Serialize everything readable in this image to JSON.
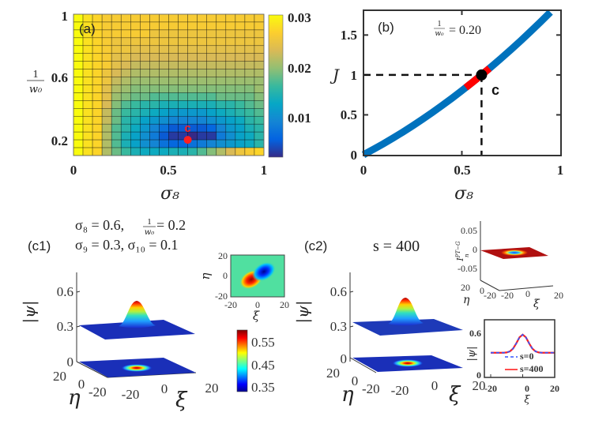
{
  "figure": {
    "panel_a": "(a)",
    "panel_b": "(b)",
    "panel_c1": "(c1)",
    "panel_c2": "(c2)"
  },
  "colors": {
    "curve": "#0072bd",
    "highlight": "#ff0000",
    "marker_a": "#ff0000",
    "marker_b": "#000000",
    "plane_c2_inset": "#b01010"
  },
  "chart_data": [
    {
      "type": "heatmap",
      "panel": "(a)",
      "colormap": "parula",
      "xlabel": "σ₈",
      "ylabel": {
        "num": "1",
        "den": "w₀"
      },
      "xlim": [
        0,
        1
      ],
      "ylim": [
        0.1,
        1
      ],
      "xticks": [
        "0",
        "0.5",
        "1"
      ],
      "yticks": [
        "0.2",
        "0.6",
        "1"
      ],
      "colorbar": {
        "range": [
          0.003,
          0.031
        ],
        "ticks": [
          "0.01",
          "0.02",
          "0.03"
        ]
      },
      "x_centers": [
        0.025,
        0.075,
        0.125,
        0.175,
        0.225,
        0.275,
        0.325,
        0.375,
        0.425,
        0.475,
        0.525,
        0.575,
        0.625,
        0.675,
        0.725,
        0.775,
        0.825,
        0.875,
        0.925,
        0.975
      ],
      "y_centers": [
        0.975,
        0.925,
        0.875,
        0.825,
        0.775,
        0.725,
        0.675,
        0.625,
        0.575,
        0.525,
        0.475,
        0.425,
        0.375,
        0.325,
        0.275,
        0.225,
        0.175,
        0.125
      ],
      "z": [
        [
          0.031,
          0.029,
          0.028,
          0.027,
          0.027,
          0.027,
          0.027,
          0.027,
          0.027,
          0.027,
          0.027,
          0.027,
          0.027,
          0.027,
          0.027,
          0.027,
          0.027,
          0.027,
          0.027,
          0.027
        ],
        [
          0.031,
          0.029,
          0.028,
          0.027,
          0.027,
          0.027,
          0.027,
          0.027,
          0.027,
          0.027,
          0.027,
          0.027,
          0.027,
          0.027,
          0.027,
          0.027,
          0.027,
          0.027,
          0.027,
          0.027
        ],
        [
          0.031,
          0.029,
          0.028,
          0.027,
          0.027,
          0.027,
          0.027,
          0.027,
          0.026,
          0.026,
          0.026,
          0.026,
          0.026,
          0.026,
          0.026,
          0.026,
          0.026,
          0.026,
          0.026,
          0.026
        ],
        [
          0.031,
          0.029,
          0.028,
          0.027,
          0.026,
          0.026,
          0.026,
          0.026,
          0.026,
          0.026,
          0.026,
          0.026,
          0.026,
          0.026,
          0.026,
          0.026,
          0.026,
          0.026,
          0.026,
          0.026
        ],
        [
          0.031,
          0.029,
          0.028,
          0.027,
          0.026,
          0.026,
          0.025,
          0.025,
          0.025,
          0.025,
          0.025,
          0.025,
          0.025,
          0.025,
          0.025,
          0.025,
          0.025,
          0.025,
          0.025,
          0.025
        ],
        [
          0.031,
          0.029,
          0.028,
          0.027,
          0.025,
          0.025,
          0.024,
          0.024,
          0.024,
          0.024,
          0.024,
          0.024,
          0.024,
          0.024,
          0.024,
          0.024,
          0.024,
          0.024,
          0.024,
          0.024
        ],
        [
          0.031,
          0.029,
          0.028,
          0.027,
          0.025,
          0.024,
          0.023,
          0.023,
          0.023,
          0.023,
          0.023,
          0.023,
          0.023,
          0.023,
          0.023,
          0.023,
          0.023,
          0.023,
          0.023,
          0.023
        ],
        [
          0.031,
          0.029,
          0.028,
          0.026,
          0.024,
          0.023,
          0.022,
          0.022,
          0.022,
          0.022,
          0.022,
          0.022,
          0.022,
          0.022,
          0.022,
          0.022,
          0.022,
          0.022,
          0.022,
          0.022
        ],
        [
          0.031,
          0.029,
          0.028,
          0.026,
          0.023,
          0.022,
          0.021,
          0.021,
          0.021,
          0.021,
          0.021,
          0.021,
          0.021,
          0.021,
          0.021,
          0.021,
          0.021,
          0.021,
          0.021,
          0.021
        ],
        [
          0.031,
          0.029,
          0.028,
          0.025,
          0.022,
          0.021,
          0.02,
          0.02,
          0.02,
          0.02,
          0.02,
          0.02,
          0.02,
          0.02,
          0.02,
          0.02,
          0.02,
          0.02,
          0.02,
          0.021
        ],
        [
          0.031,
          0.029,
          0.028,
          0.025,
          0.021,
          0.02,
          0.019,
          0.019,
          0.018,
          0.018,
          0.018,
          0.018,
          0.018,
          0.018,
          0.018,
          0.019,
          0.019,
          0.019,
          0.019,
          0.02
        ],
        [
          0.031,
          0.029,
          0.028,
          0.024,
          0.02,
          0.018,
          0.017,
          0.016,
          0.016,
          0.015,
          0.015,
          0.015,
          0.015,
          0.015,
          0.015,
          0.016,
          0.016,
          0.017,
          0.018,
          0.019
        ],
        [
          0.031,
          0.029,
          0.028,
          0.023,
          0.019,
          0.017,
          0.016,
          0.015,
          0.014,
          0.013,
          0.012,
          0.012,
          0.012,
          0.012,
          0.013,
          0.014,
          0.015,
          0.016,
          0.017,
          0.018
        ],
        [
          0.031,
          0.029,
          0.028,
          0.023,
          0.019,
          0.016,
          0.015,
          0.013,
          0.012,
          0.011,
          0.01,
          0.01,
          0.01,
          0.01,
          0.011,
          0.012,
          0.013,
          0.014,
          0.016,
          0.017
        ],
        [
          0.031,
          0.029,
          0.028,
          0.022,
          0.018,
          0.016,
          0.014,
          0.012,
          0.01,
          0.008,
          0.006,
          0.006,
          0.006,
          0.006,
          0.007,
          0.01,
          0.012,
          0.013,
          0.015,
          0.016
        ],
        [
          0.031,
          0.029,
          0.028,
          0.022,
          0.018,
          0.015,
          0.013,
          0.011,
          0.009,
          0.006,
          0.004,
          0.004,
          0.003,
          0.004,
          0.004,
          0.009,
          0.011,
          0.013,
          0.014,
          0.016
        ],
        [
          0.031,
          0.029,
          0.028,
          0.022,
          0.018,
          0.015,
          0.013,
          0.011,
          0.01,
          0.008,
          0.007,
          0.007,
          0.008,
          0.009,
          0.01,
          0.011,
          0.012,
          0.013,
          0.014,
          0.016
        ],
        [
          0.031,
          0.029,
          0.028,
          0.022,
          0.019,
          0.017,
          0.015,
          0.014,
          0.014,
          0.014,
          0.015,
          0.015,
          0.016,
          0.018,
          0.02,
          0.022,
          0.024,
          0.026,
          0.027,
          0.028
        ]
      ],
      "marker": {
        "x": 0.6,
        "y": 0.2,
        "label": "c"
      }
    },
    {
      "type": "line",
      "panel": "(b)",
      "xlabel": "σ₈",
      "ylabel": "J",
      "xlim": [
        0,
        1
      ],
      "ylim": [
        0,
        1.82
      ],
      "xticks": [
        "0",
        "0.5",
        "1"
      ],
      "yticks": [
        "0",
        "0.5",
        "1",
        "1.5"
      ],
      "annotation": {
        "num": "1",
        "den": "w₀",
        "rest": "= 0.20"
      },
      "x": [
        0,
        0.05,
        0.1,
        0.15,
        0.2,
        0.25,
        0.3,
        0.35,
        0.4,
        0.45,
        0.5,
        0.55,
        0.6,
        0.65,
        0.7,
        0.75,
        0.8,
        0.85,
        0.9,
        0.95
      ],
      "y": [
        0,
        0.067,
        0.136,
        0.209,
        0.284,
        0.363,
        0.445,
        0.53,
        0.618,
        0.709,
        0.803,
        0.9,
        1.0,
        1.103,
        1.209,
        1.318,
        1.43,
        1.546,
        1.664,
        1.786
      ],
      "highlight_range": [
        0.52,
        0.64
      ],
      "marker": {
        "x": 0.6,
        "y": 1,
        "label": "c"
      }
    },
    {
      "type": "surface",
      "panel": "(c1)",
      "title_line1": {
        "a": "σ₈ = 0.6, ",
        "num": "1",
        "den": "w₀",
        "b": " = 0.2"
      },
      "title_line2": "σ₉ = 0.3, σ₁₀ = 0.1",
      "zlabel": "|ψ|",
      "xlabel": "ξ",
      "ylabel": "η",
      "zticks": [
        "0",
        "0.3",
        "0.6"
      ],
      "xticks": [
        "-20",
        "0",
        "20"
      ],
      "yticks": [
        "20",
        "0",
        "-20"
      ],
      "colorbar": {
        "colormap": "jet",
        "range": [
          0.35,
          0.55
        ],
        "ticks": [
          "0.55",
          "0.45",
          "0.35"
        ]
      },
      "inset": {
        "type": "heatmap",
        "xlabel": "ξ",
        "ylabel": "η",
        "xticks": [
          "-20",
          "0",
          "20"
        ],
        "yticks": [
          "20",
          "0",
          "-20"
        ]
      }
    },
    {
      "type": "surface",
      "panel": "(c2)",
      "title": "s = 400",
      "zlabel": "|ψ|",
      "xlabel": "ξ",
      "ylabel": "η",
      "zticks": [
        "0",
        "0.3",
        "0.6"
      ],
      "xticks": [
        "-20",
        "0",
        "20"
      ],
      "yticks": [
        "20",
        "0",
        "-20"
      ],
      "inset_surface": {
        "zlabel": {
          "base": "I",
          "sub": "n",
          "sup": "PT−G"
        },
        "zticks": [
          "0.05",
          "0",
          "-0.05"
        ],
        "xticks": [
          "-20",
          "0",
          "20"
        ],
        "yticks": [
          "20",
          "0",
          "-20"
        ],
        "xlabel": "ξ",
        "ylabel": "η"
      },
      "inset_line": {
        "type": "line",
        "xlabel": "ξ",
        "ylabel": "|ψ|",
        "xlim": [
          -20,
          20
        ],
        "ylim": [
          -0.05,
          0.8
        ],
        "xticks": [
          "-20",
          "0",
          "20"
        ],
        "yticks": [
          "0",
          "0.6"
        ],
        "x": [
          -20,
          -18,
          -16,
          -14,
          -12,
          -10,
          -8,
          -6,
          -4,
          -2,
          0,
          2,
          4,
          6,
          8,
          10,
          12,
          14,
          16,
          18,
          20
        ],
        "series": [
          {
            "name": "s=0",
            "color": "#3355ff",
            "dash": true,
            "values": [
              0.32,
              0.32,
              0.32,
              0.32,
              0.32,
              0.324,
              0.339,
              0.38,
              0.455,
              0.541,
              0.58,
              0.541,
              0.455,
              0.38,
              0.339,
              0.324,
              0.32,
              0.32,
              0.32,
              0.32,
              0.32
            ]
          },
          {
            "name": "s=400",
            "color": "#ff2020",
            "dash": false,
            "values": [
              0.32,
              0.32,
              0.32,
              0.32,
              0.32,
              0.324,
              0.339,
              0.38,
              0.455,
              0.541,
              0.58,
              0.541,
              0.455,
              0.38,
              0.339,
              0.324,
              0.32,
              0.32,
              0.32,
              0.32,
              0.32
            ]
          }
        ]
      }
    }
  ]
}
